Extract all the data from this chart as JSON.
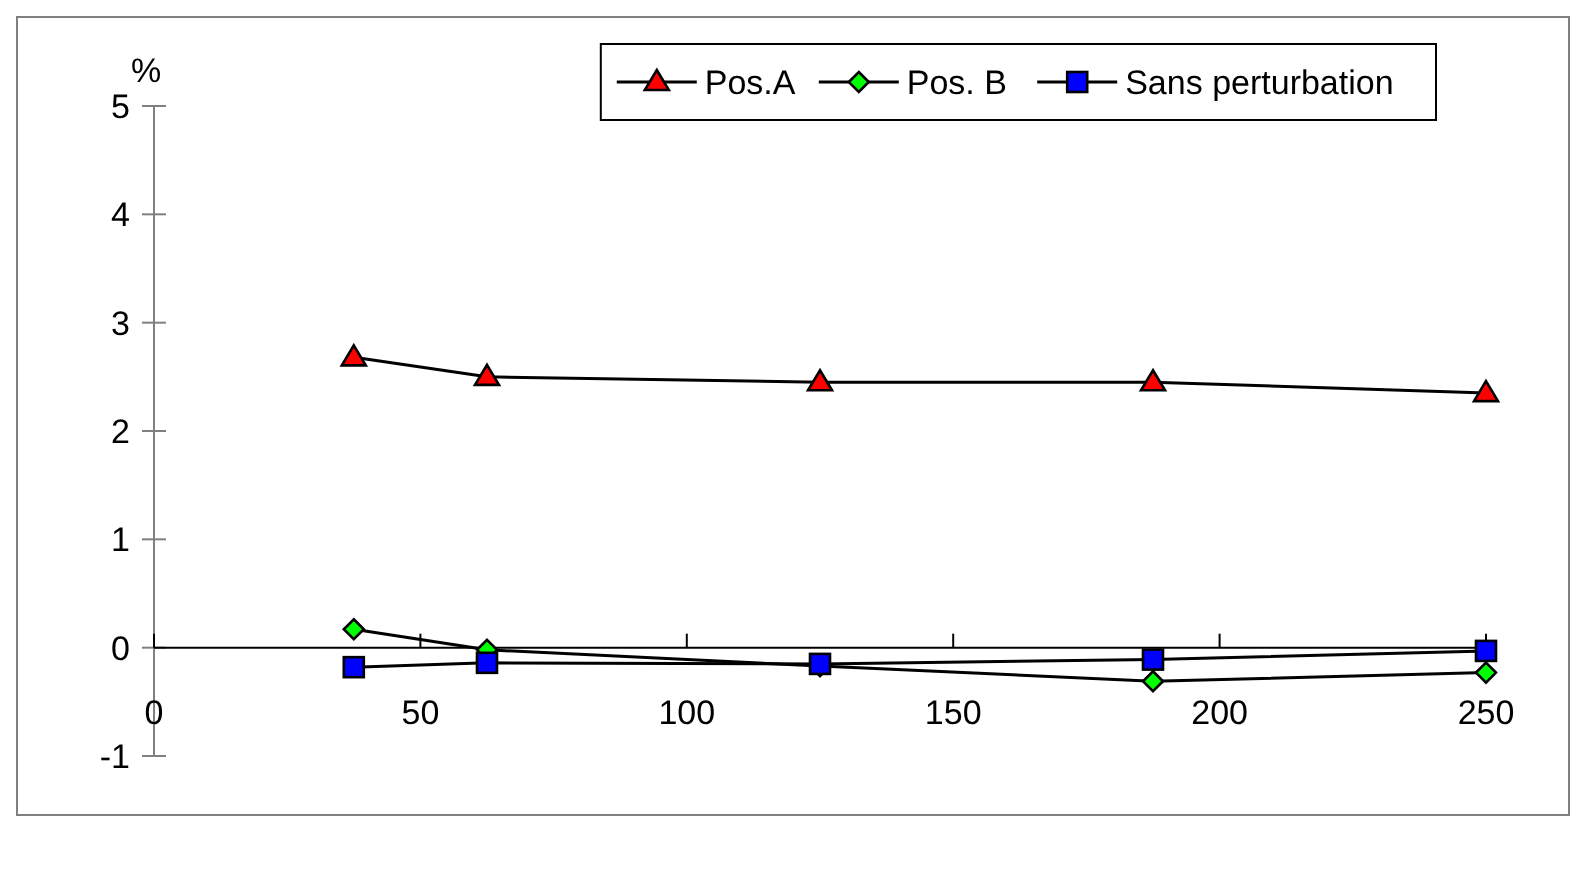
{
  "chart_data": {
    "type": "line",
    "ylabel": "%",
    "x": [
      37.5,
      62.5,
      125,
      187.5,
      250
    ],
    "xlim": [
      0,
      250
    ],
    "xticks": [
      0,
      50,
      100,
      150,
      200,
      250
    ],
    "ylim": [
      -1,
      5
    ],
    "yticks": [
      -1,
      0,
      1,
      2,
      3,
      4,
      5
    ],
    "legend": "top right",
    "line_style": "solid",
    "grid": false,
    "series": [
      {
        "name": "Pos.A",
        "color": "#ff0000",
        "marker": "triangle",
        "values": [
          2.68,
          2.5,
          2.45,
          2.45,
          2.35
        ]
      },
      {
        "name": "Pos. B",
        "color": "#00ff00",
        "marker": "diamond",
        "values": [
          0.17,
          -0.02,
          -0.17,
          -0.31,
          -0.23
        ]
      },
      {
        "name": "Sans perturbation",
        "color": "#0000ff",
        "marker": "square",
        "values": [
          -0.18,
          -0.14,
          -0.15,
          -0.11,
          -0.03
        ]
      }
    ]
  }
}
